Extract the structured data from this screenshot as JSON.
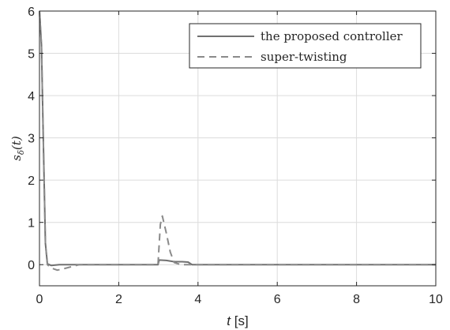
{
  "chart_data": {
    "type": "line",
    "xlabel_var": "t",
    "xlabel_unit": " [s]",
    "ylabel_main": "s",
    "ylabel_sub": "δ",
    "ylabel_arg": "(t)",
    "xlim": [
      0,
      10
    ],
    "ylim": [
      -0.5,
      6
    ],
    "xticks": [
      0,
      2,
      4,
      6,
      8,
      10
    ],
    "yticks": [
      0,
      1,
      2,
      3,
      4,
      5,
      6
    ],
    "grid": true,
    "legend_position": "top-right",
    "series": [
      {
        "name": "the proposed controller",
        "style": "solid",
        "color": "#707070",
        "points": [
          [
            0.0,
            6.0
          ],
          [
            0.05,
            5.2
          ],
          [
            0.1,
            2.8
          ],
          [
            0.15,
            0.5
          ],
          [
            0.2,
            0.02
          ],
          [
            0.3,
            -0.02
          ],
          [
            0.5,
            0.0
          ],
          [
            1.0,
            0.0
          ],
          [
            2.0,
            0.0
          ],
          [
            2.99,
            0.0
          ],
          [
            3.02,
            0.11
          ],
          [
            3.2,
            0.1
          ],
          [
            3.4,
            0.07
          ],
          [
            3.6,
            0.07
          ],
          [
            3.75,
            0.06
          ],
          [
            3.85,
            0.0
          ],
          [
            4.0,
            0.0
          ],
          [
            10.0,
            0.0
          ]
        ]
      },
      {
        "name": "super-twisting",
        "style": "dashed",
        "color": "#8a8a8a",
        "points": [
          [
            0.0,
            6.0
          ],
          [
            0.05,
            5.2
          ],
          [
            0.1,
            2.8
          ],
          [
            0.15,
            0.5
          ],
          [
            0.2,
            0.0
          ],
          [
            0.3,
            -0.08
          ],
          [
            0.45,
            -0.13
          ],
          [
            0.6,
            -0.1
          ],
          [
            0.8,
            -0.05
          ],
          [
            1.0,
            0.0
          ],
          [
            2.0,
            0.0
          ],
          [
            2.99,
            0.0
          ],
          [
            3.05,
            0.95
          ],
          [
            3.1,
            1.15
          ],
          [
            3.2,
            0.75
          ],
          [
            3.3,
            0.3
          ],
          [
            3.4,
            0.05
          ],
          [
            3.5,
            0.02
          ],
          [
            3.6,
            0.0
          ],
          [
            4.0,
            0.0
          ],
          [
            10.0,
            0.0
          ]
        ]
      }
    ]
  }
}
